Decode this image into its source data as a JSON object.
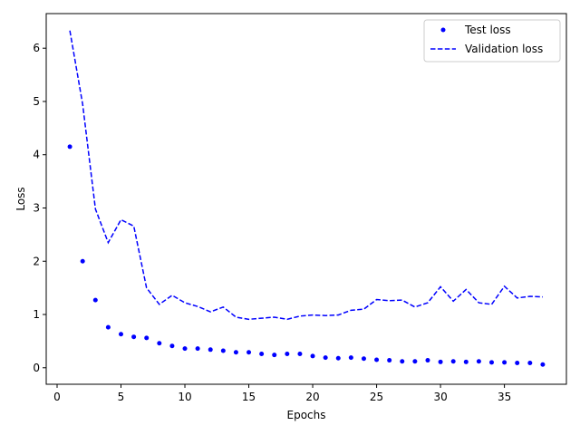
{
  "chart_data": {
    "type": "line",
    "title": "",
    "xlabel": "Epochs",
    "ylabel": "Loss",
    "xlim": [
      -0.85,
      39.85
    ],
    "ylim": [
      -0.31,
      6.65
    ],
    "xticks": [
      0,
      5,
      10,
      15,
      20,
      25,
      30,
      35
    ],
    "yticks": [
      0,
      1,
      2,
      3,
      4,
      5,
      6
    ],
    "grid": false,
    "legend_position": "top-right",
    "series": [
      {
        "name": "Test loss",
        "style": "scatter",
        "color": "#0000ff",
        "x": [
          1,
          2,
          3,
          4,
          5,
          6,
          7,
          8,
          9,
          10,
          11,
          12,
          13,
          14,
          15,
          16,
          17,
          18,
          19,
          20,
          21,
          22,
          23,
          24,
          25,
          26,
          27,
          28,
          29,
          30,
          31,
          32,
          33,
          34,
          35,
          36,
          37,
          38
        ],
        "y": [
          4.15,
          2.0,
          1.27,
          0.76,
          0.63,
          0.58,
          0.56,
          0.46,
          0.41,
          0.36,
          0.36,
          0.34,
          0.32,
          0.29,
          0.29,
          0.26,
          0.24,
          0.26,
          0.26,
          0.22,
          0.19,
          0.18,
          0.19,
          0.17,
          0.15,
          0.14,
          0.12,
          0.12,
          0.14,
          0.11,
          0.12,
          0.11,
          0.12,
          0.1,
          0.1,
          0.09,
          0.09,
          0.06
        ]
      },
      {
        "name": "Validation loss",
        "style": "dashed-line",
        "color": "#0000ff",
        "x": [
          1,
          2,
          3,
          4,
          5,
          6,
          7,
          8,
          9,
          10,
          11,
          12,
          13,
          14,
          15,
          16,
          17,
          18,
          19,
          20,
          21,
          22,
          23,
          24,
          25,
          26,
          27,
          28,
          29,
          30,
          31,
          32,
          33,
          34,
          35,
          36,
          37,
          38
        ],
        "y": [
          6.33,
          4.95,
          2.98,
          2.35,
          2.78,
          2.66,
          1.5,
          1.19,
          1.36,
          1.22,
          1.15,
          1.05,
          1.14,
          0.95,
          0.91,
          0.93,
          0.95,
          0.91,
          0.97,
          0.99,
          0.98,
          0.99,
          1.08,
          1.1,
          1.28,
          1.26,
          1.27,
          1.14,
          1.22,
          1.52,
          1.25,
          1.47,
          1.22,
          1.19,
          1.53,
          1.31,
          1.34,
          1.33
        ]
      }
    ]
  }
}
